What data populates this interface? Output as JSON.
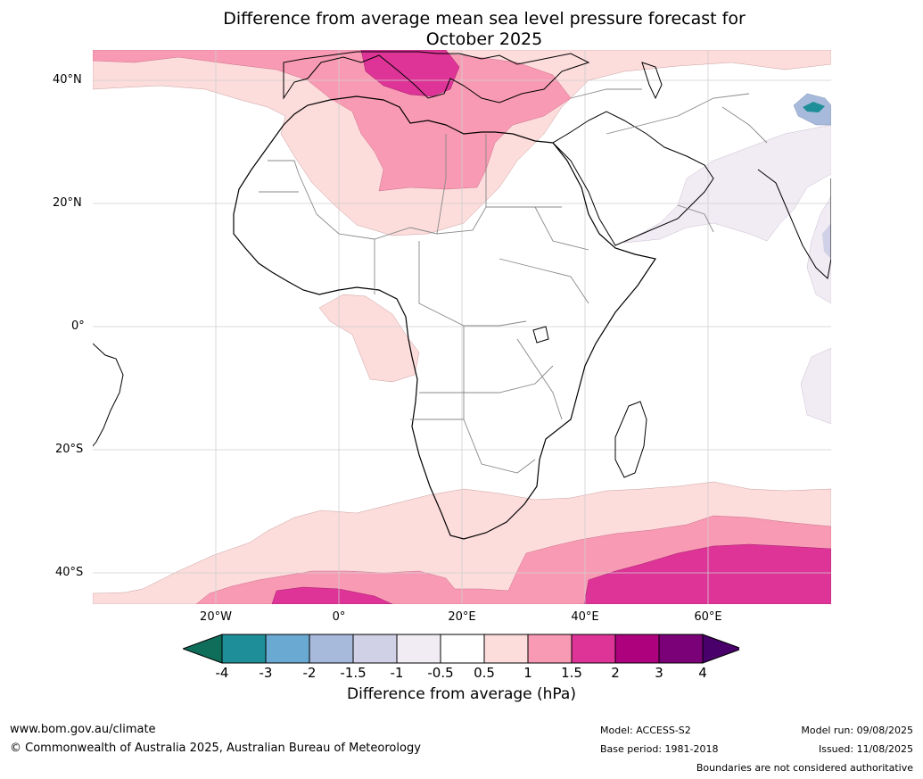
{
  "title_line1": "Difference from average mean sea level pressure forecast for",
  "title_line2": "October 2025",
  "latitude_labels": [
    "40°N",
    "20°N",
    "0°",
    "20°S",
    "40°S"
  ],
  "longitude_labels": [
    "20°W",
    "0°",
    "20°E",
    "40°E",
    "60°E"
  ],
  "colorbar": {
    "ticks": [
      "-4",
      "-3",
      "-2",
      "-1.5",
      "-1",
      "-0.5",
      "0.5",
      "1",
      "1.5",
      "2",
      "3",
      "4"
    ],
    "colors": [
      "#0f6e5a",
      "#1e8f98",
      "#69a9d2",
      "#a8badb",
      "#d0d0e6",
      "#f1ecf4",
      "#ffffff",
      "#fddcdc",
      "#f99ab4",
      "#de3497",
      "#ae017e",
      "#7a0177",
      "#49006a"
    ],
    "label": "Difference from average (hPa)"
  },
  "footer": {
    "website": "www.bom.gov.au/climate",
    "copyright": "© Commonwealth of Australia 2025, Australian Bureau of Meteorology",
    "model": "Model: ACCESS-S2",
    "base_period": "Base period: 1981-2018",
    "model_run": "Model run: 09/08/2025",
    "issued": "Issued: 11/08/2025",
    "disclaimer": "Boundaries are not considered authoritative"
  }
}
